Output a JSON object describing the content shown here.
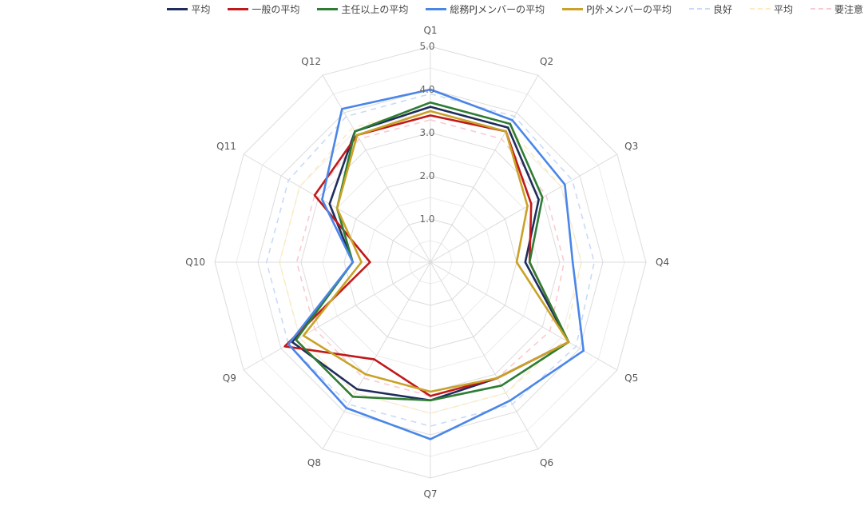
{
  "chart_data": {
    "type": "radar",
    "categories": [
      "Q1",
      "Q2",
      "Q3",
      "Q4",
      "Q5",
      "Q6",
      "Q7",
      "Q8",
      "Q9",
      "Q10",
      "Q11",
      "Q12"
    ],
    "rmin": 1.0,
    "rmax": 5.0,
    "ticks": [
      "1.0",
      "2.0",
      "3.0",
      "4.0",
      "5.0"
    ],
    "tick_values": [
      1,
      2,
      3,
      4,
      5
    ],
    "gridlines": true,
    "legend_position": "top",
    "series": [
      {
        "name": "平均",
        "color": "#1f2d5c",
        "style": "solid",
        "values": [
          3.6,
          3.6,
          2.9,
          2.2,
          3.7,
          3.1,
          3.2,
          3.4,
          3.7,
          1.8,
          2.7,
          3.5
        ]
      },
      {
        "name": "一般の平均",
        "color": "#c0191b",
        "style": "solid",
        "values": [
          3.4,
          3.5,
          2.7,
          2.3,
          3.7,
          3.1,
          3.1,
          2.6,
          3.9,
          1.4,
          3.1,
          3.4
        ]
      },
      {
        "name": "主任以上の平均",
        "color": "#2e7d32",
        "style": "solid",
        "values": [
          3.7,
          3.7,
          3.0,
          2.3,
          3.7,
          3.3,
          3.2,
          3.6,
          3.6,
          1.8,
          2.5,
          3.5
        ]
      },
      {
        "name": "総務PJメンバーの平均",
        "color": "#4a86e8",
        "style": "solid",
        "values": [
          4.0,
          3.8,
          3.6,
          3.3,
          4.1,
          3.7,
          4.1,
          3.9,
          3.8,
          1.8,
          2.9,
          4.1
        ]
      },
      {
        "name": "PJ外メンバーの平均",
        "color": "#c9a227",
        "style": "solid",
        "values": [
          3.5,
          3.5,
          2.6,
          2.0,
          3.7,
          3.1,
          3.0,
          3.0,
          3.4,
          1.6,
          2.5,
          3.4
        ]
      },
      {
        "name": "良好",
        "color": "#c9daf8",
        "style": "dashed",
        "values": [
          3.9,
          3.9,
          3.8,
          3.8,
          3.9,
          3.8,
          3.8,
          3.8,
          3.8,
          3.8,
          3.8,
          3.9
        ]
      },
      {
        "name": "平均",
        "color": "#fdebbd",
        "style": "dashed",
        "values": [
          3.6,
          3.6,
          3.5,
          3.5,
          3.6,
          3.5,
          3.5,
          3.5,
          3.5,
          3.5,
          3.5,
          3.6
        ]
      },
      {
        "name": "要注意",
        "color": "#f8cbd0",
        "style": "dashed",
        "values": [
          3.3,
          3.3,
          3.1,
          3.1,
          3.2,
          3.1,
          3.1,
          3.1,
          3.1,
          3.1,
          3.1,
          3.3
        ]
      }
    ]
  }
}
